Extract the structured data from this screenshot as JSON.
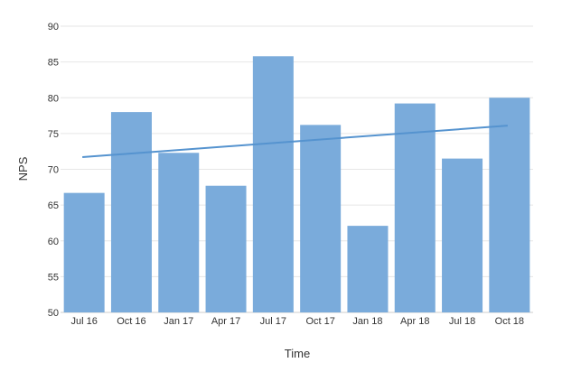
{
  "chart_data": {
    "type": "bar",
    "title": "",
    "xlabel": "Time",
    "ylabel": "NPS",
    "ylim": [
      50,
      90
    ],
    "yticks": [
      50,
      55,
      60,
      65,
      70,
      75,
      80,
      85,
      90
    ],
    "categories": [
      "Jul 16",
      "Oct 16",
      "Jan 17",
      "Apr 17",
      "Jul 17",
      "Oct 17",
      "Jan 18",
      "Apr 18",
      "Jul 18",
      "Oct 18"
    ],
    "values": [
      66.7,
      78.0,
      72.3,
      67.7,
      85.8,
      76.2,
      62.1,
      79.2,
      71.5,
      80.0
    ],
    "trend": {
      "type": "linear",
      "start": 71.7,
      "end": 76.1
    },
    "grid": true,
    "legend": "none",
    "colors": {
      "bar": "#7aabdb",
      "trend": "#5593cf"
    }
  }
}
